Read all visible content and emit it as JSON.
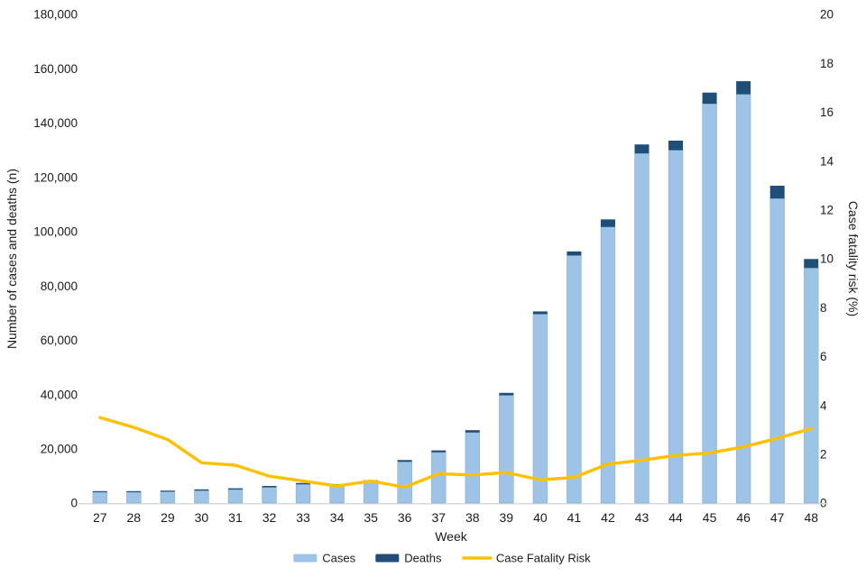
{
  "chart_data": {
    "type": "combo-bar-line",
    "title": "",
    "x": {
      "label": "Week",
      "categories": [
        "27",
        "28",
        "29",
        "30",
        "31",
        "32",
        "33",
        "34",
        "35",
        "36",
        "37",
        "38",
        "39",
        "40",
        "41",
        "42",
        "43",
        "44",
        "45",
        "46",
        "47",
        "48"
      ]
    },
    "y_left": {
      "label": "Number of cases and deaths (n)",
      "min": 0,
      "max": 180000,
      "tick_step": 20000,
      "tick_labels": [
        "0",
        "20,000",
        "40,000",
        "60,000",
        "80,000",
        "100,000",
        "120,000",
        "140,000",
        "160,000",
        "180,000"
      ]
    },
    "y_right": {
      "label": "Case fatality risk (%)",
      "min": 0,
      "max": 20,
      "tick_step": 2,
      "tick_labels": [
        "0",
        "2",
        "4",
        "6",
        "8",
        "10",
        "12",
        "14",
        "16",
        "18",
        "20"
      ]
    },
    "series": [
      {
        "name": "Cases",
        "type": "bar",
        "stacked": true,
        "axis": "left",
        "color": "#9DC3E6",
        "values": [
          4000,
          4000,
          4200,
          4600,
          5000,
          5800,
          6900,
          6500,
          7800,
          15200,
          18700,
          26000,
          39700,
          69600,
          91200,
          101700,
          128800,
          130000,
          147100,
          150600,
          112200,
          86600
        ]
      },
      {
        "name": "Deaths",
        "type": "bar",
        "stacked": true,
        "axis": "left",
        "color": "#1F4E79",
        "values": [
          400,
          400,
          400,
          450,
          450,
          500,
          500,
          500,
          600,
          650,
          700,
          850,
          900,
          1000,
          1500,
          2800,
          3300,
          3500,
          4100,
          4800,
          4700,
          3300
        ]
      },
      {
        "name": "Case Fatality Risk",
        "type": "line",
        "stacked": false,
        "axis": "right",
        "color": "#FFC000",
        "values": [
          3.5,
          3.1,
          2.6,
          1.65,
          1.55,
          1.1,
          0.9,
          0.7,
          0.9,
          0.65,
          1.2,
          1.15,
          1.25,
          0.95,
          1.05,
          1.6,
          1.75,
          1.95,
          2.05,
          2.3,
          2.65,
          3.05
        ]
      }
    ],
    "legend": {
      "position": "bottom",
      "entries": [
        "Cases",
        "Deaths",
        "Case Fatality Risk"
      ]
    },
    "grid": false,
    "axis_line_color": "#d9d9d9",
    "text_color": "#1a1a1a"
  }
}
